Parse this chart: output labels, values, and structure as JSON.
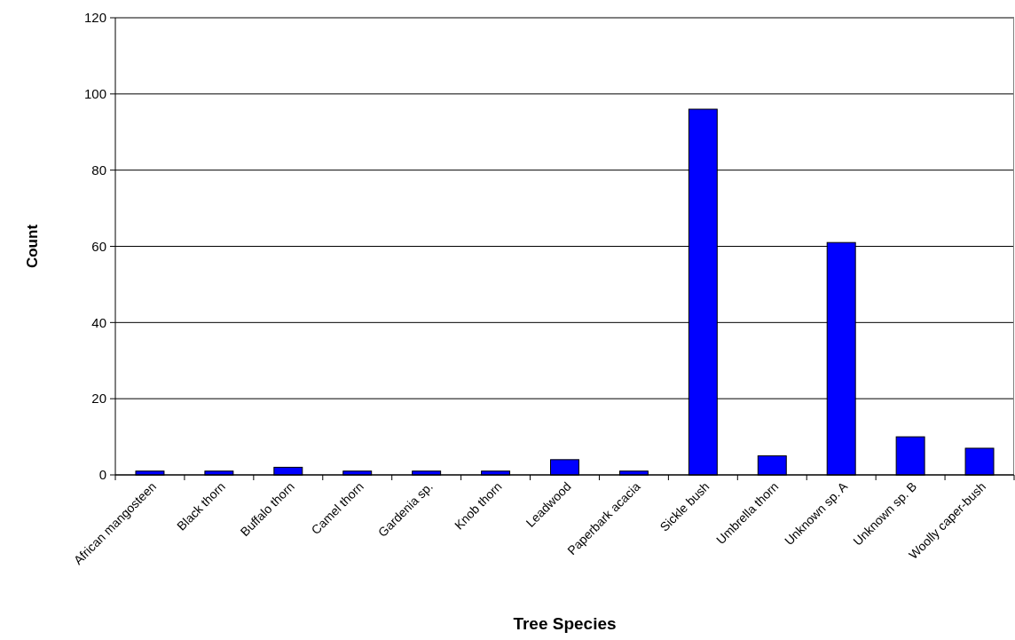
{
  "chart_data": {
    "type": "bar",
    "xlabel": "Tree Species",
    "ylabel": "Count",
    "categories": [
      "African mangosteen",
      "Black thorn",
      "Buffalo thorn",
      "Camel thorn",
      "Gardenia sp.",
      "Knob thorn",
      "Leadwood",
      "Paperbark acacia",
      "Sickle bush",
      "Umbrella thorn",
      "Unknown sp. A",
      "Unknown sp. B",
      "Woolly caper-bush"
    ],
    "values": [
      1,
      1,
      2,
      1,
      1,
      1,
      4,
      1,
      96,
      5,
      61,
      10,
      7
    ],
    "color": "#0000ff",
    "ylim": [
      0,
      120
    ],
    "yticks": [
      0,
      20,
      40,
      60,
      80,
      100,
      120
    ],
    "grid": "y"
  }
}
